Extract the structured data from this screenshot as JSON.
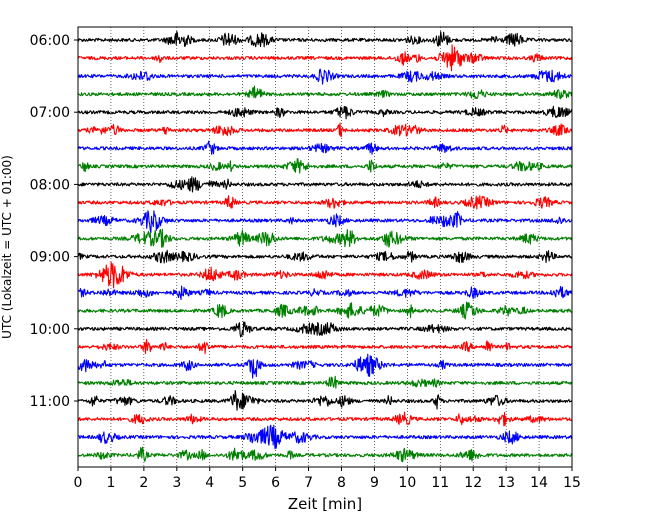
{
  "chart_data": {
    "type": "line",
    "title": "",
    "xlabel": "Zeit  [min]",
    "ylabel": "UTC (Lokalzeit = UTC + 01:00)",
    "xlim": [
      0,
      15
    ],
    "xticks": [
      0,
      1,
      2,
      3,
      4,
      5,
      6,
      7,
      8,
      9,
      10,
      11,
      12,
      13,
      14,
      15
    ],
    "ytick_labels": [
      "06:00",
      "07:00",
      "08:00",
      "09:00",
      "10:00",
      "11:00"
    ],
    "trace_start": "06:00",
    "trace_interval_minutes": 15,
    "trace_count": 24,
    "trace_colors": [
      "#000000",
      "#ff0000",
      "#0000ff",
      "#008000"
    ],
    "grid": "vertical dotted"
  }
}
